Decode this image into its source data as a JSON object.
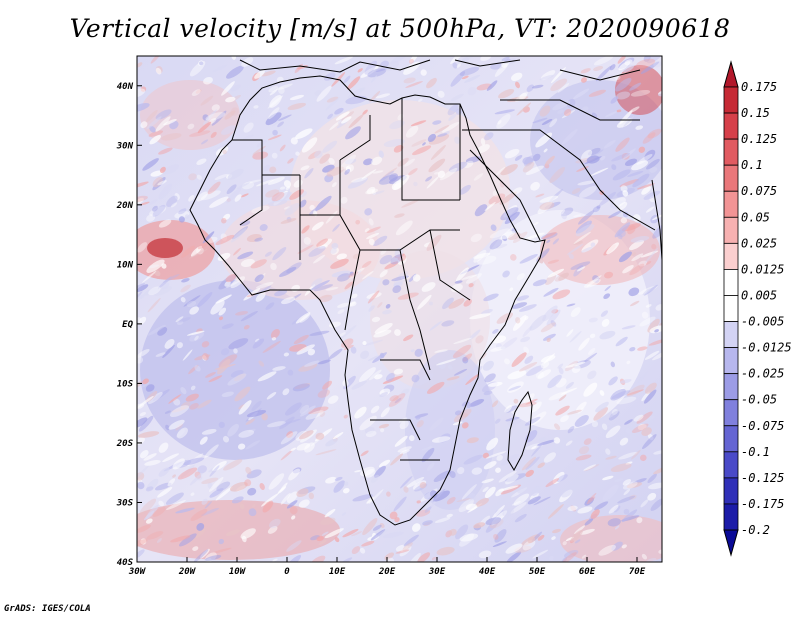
{
  "title": "Vertical velocity [m/s] at 500hPa, VT: 2020090618",
  "credit": "GrADS: IGES/COLA",
  "map": {
    "lat_labels": [
      "40N",
      "30N",
      "20N",
      "10N",
      "EQ",
      "10S",
      "20S",
      "30S",
      "40S"
    ],
    "lat_values": [
      40,
      30,
      20,
      10,
      0,
      -10,
      -20,
      -30,
      -40
    ],
    "lon_labels": [
      "30W",
      "20W",
      "10W",
      "0",
      "10E",
      "20E",
      "30E",
      "40E",
      "50E",
      "60E",
      "70E"
    ],
    "lon_values": [
      -30,
      -20,
      -10,
      0,
      10,
      20,
      30,
      40,
      50,
      60,
      70
    ],
    "lon_range": [
      -30,
      75
    ],
    "lat_range": [
      -40,
      45
    ]
  },
  "colorbar": {
    "labels": [
      "0.175",
      "0.15",
      "0.125",
      "0.1",
      "0.075",
      "0.05",
      "0.025",
      "0.0125",
      "0.005",
      "-0.005",
      "-0.0125",
      "-0.025",
      "-0.05",
      "-0.075",
      "-0.1",
      "-0.125",
      "-0.175",
      "-0.2"
    ],
    "colors": [
      "#b2182b",
      "#c62a35",
      "#d6404a",
      "#e15b61",
      "#ea777a",
      "#f29495",
      "#f7b1b1",
      "#fbcfcf",
      "#ffffff",
      "#ffffff",
      "#d3d3f4",
      "#b7b7ee",
      "#9c9ce6",
      "#8080dd",
      "#6565d3",
      "#4a4ac8",
      "#3030b8",
      "#1c1ca8",
      "#0a0a96"
    ]
  }
}
